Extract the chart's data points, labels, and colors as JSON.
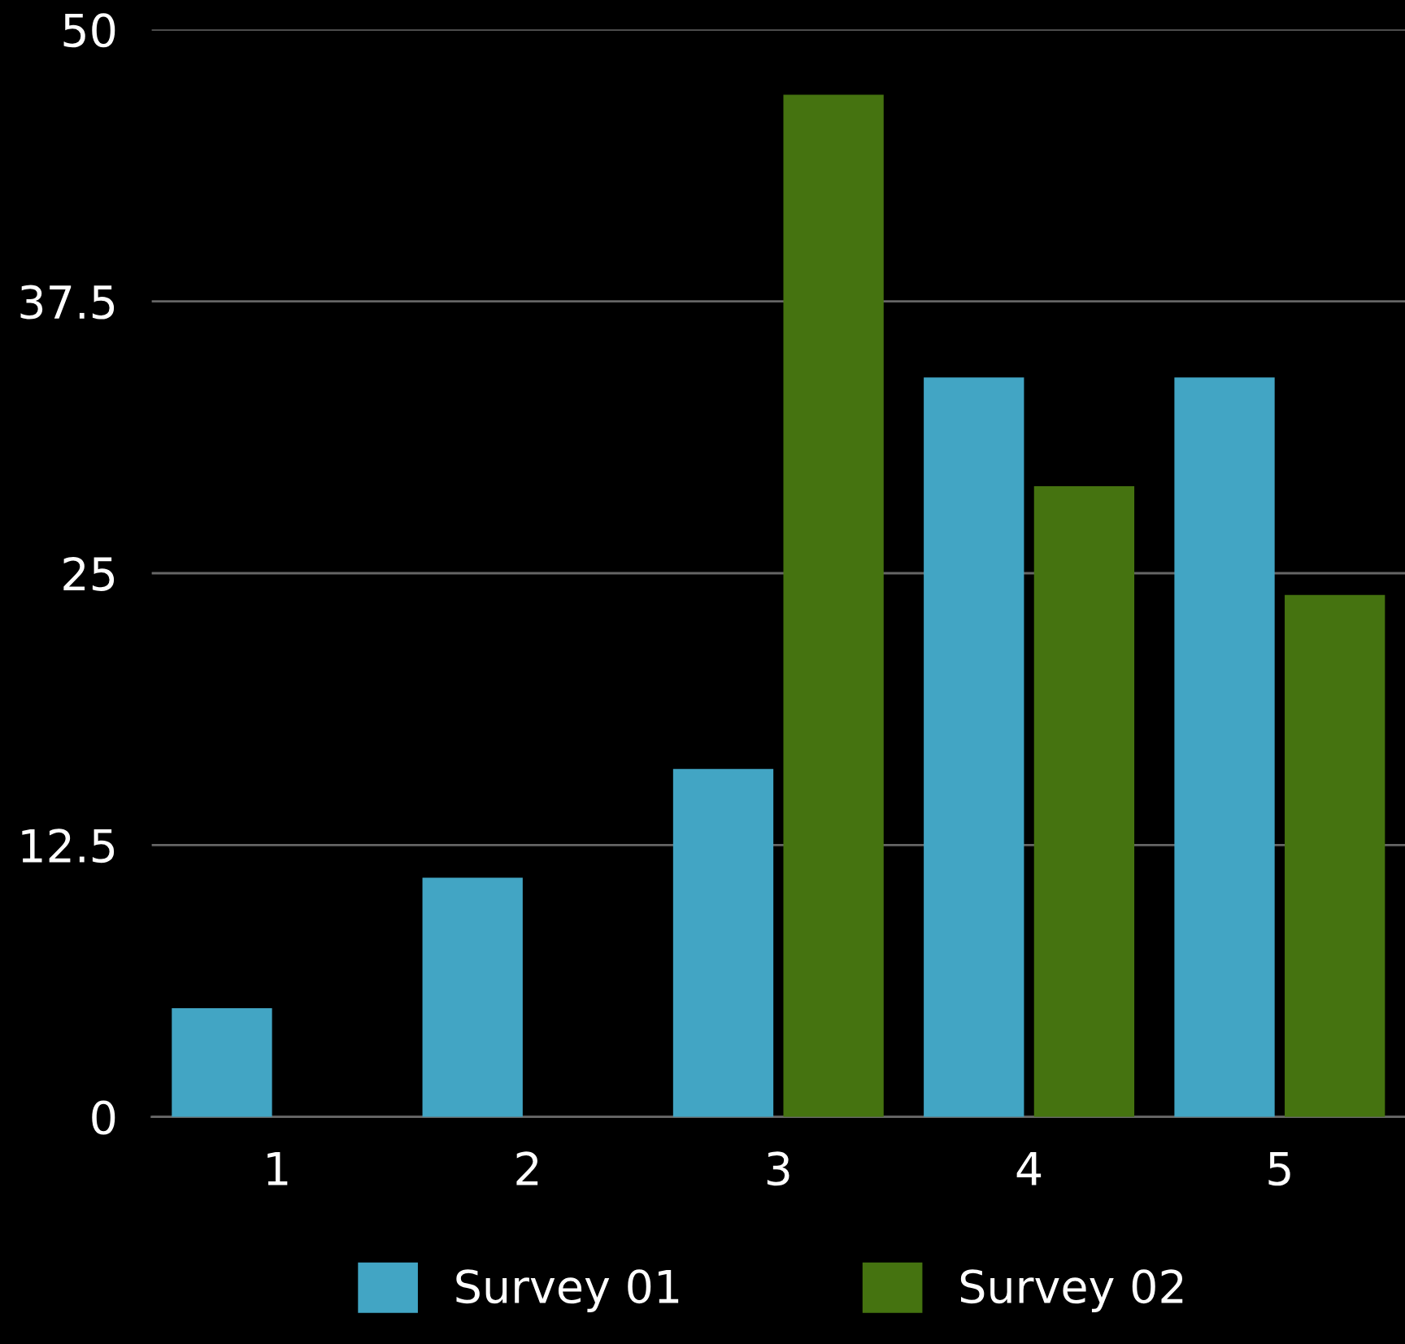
{
  "chart_data": {
    "type": "bar",
    "categories": [
      "1",
      "2",
      "3",
      "4",
      "5"
    ],
    "series": [
      {
        "name": "Survey 01",
        "color": "#42a5c4",
        "values": [
          5,
          11,
          16,
          34,
          34
        ]
      },
      {
        "name": "Survey 02",
        "color": "#457310",
        "values": [
          null,
          null,
          47,
          29,
          24
        ]
      }
    ],
    "ylim": [
      0,
      50
    ],
    "yticks": [
      0,
      {
        "value": 12.5,
        "label": "12.5"
      },
      25,
      {
        "value": 37.5,
        "label": "37.5"
      },
      50
    ],
    "grid": "y",
    "legend": "bottom"
  }
}
